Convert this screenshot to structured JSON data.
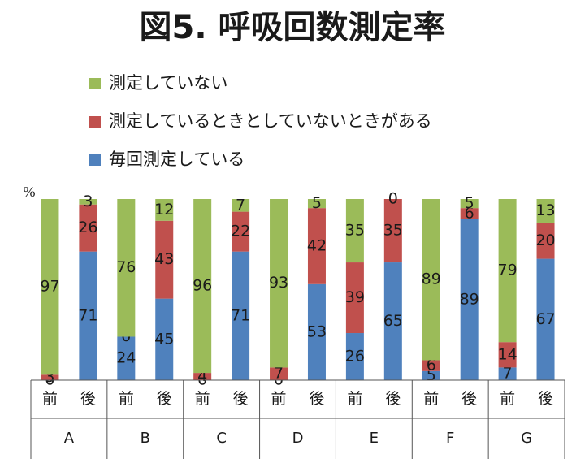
{
  "chart_data": {
    "type": "stacked_bar",
    "title": "図5. 呼吸回数測定率",
    "y_label": "%",
    "categories": [
      "前",
      "後",
      "前",
      "後",
      "前",
      "後",
      "前",
      "後",
      "前",
      "後",
      "前",
      "後",
      "前",
      "後"
    ],
    "groups": [
      "A",
      "B",
      "C",
      "D",
      "E",
      "F",
      "G"
    ],
    "series": [
      {
        "name": "毎回測定している",
        "color": "#4f81bd",
        "values": [
          0,
          71,
          24,
          45,
          0,
          71,
          0,
          53,
          26,
          65,
          5,
          89,
          7,
          67
        ]
      },
      {
        "name": "測定しているときとしていないときがある",
        "color": "#c0504d",
        "values": [
          3,
          26,
          0,
          43,
          4,
          22,
          7,
          42,
          39,
          35,
          6,
          6,
          14,
          20
        ]
      },
      {
        "name": "測定していない",
        "color": "#9bbb59",
        "values": [
          97,
          3,
          76,
          12,
          96,
          7,
          93,
          5,
          35,
          0,
          89,
          5,
          79,
          13
        ]
      }
    ],
    "ylim": [
      0,
      100
    ],
    "legend": "top-left"
  }
}
